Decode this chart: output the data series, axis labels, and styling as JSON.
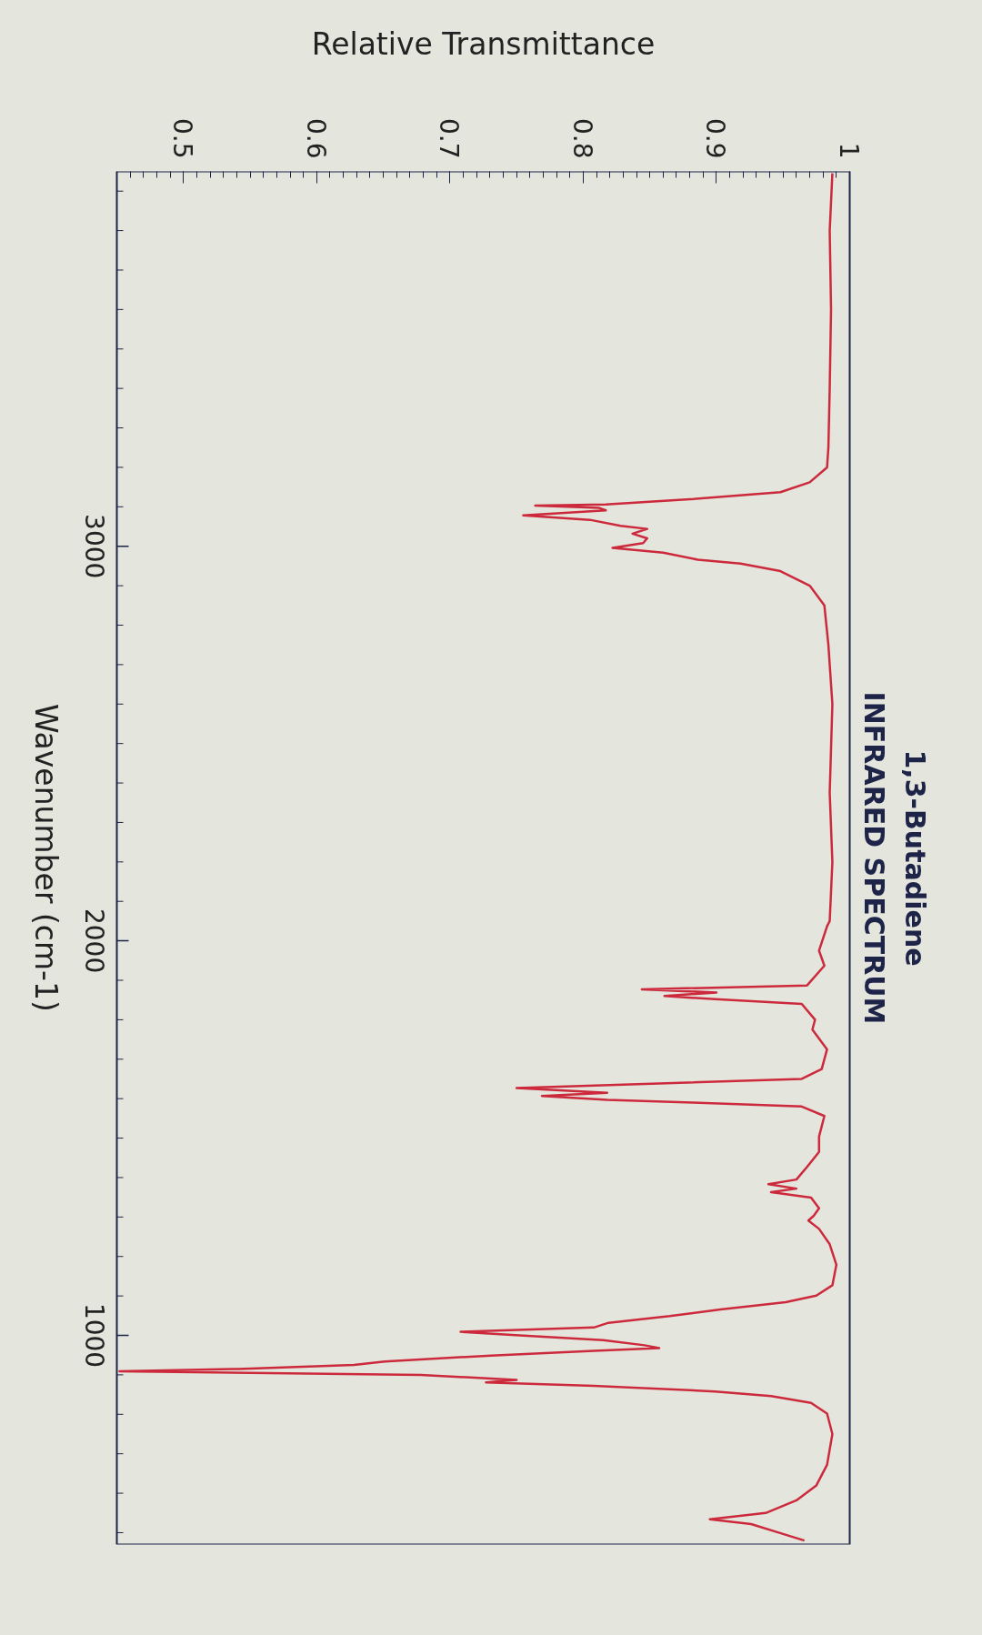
{
  "chart_data": {
    "type": "line",
    "title": "1,3-Butadiene",
    "subtitle": "INFRARED SPECTRUM",
    "xlabel": "Relative Transmittance",
    "ylabel": "Wavenumber (cm-1)",
    "xlim": [
      0.45,
      1
    ],
    "ylim": [
      470,
      3950
    ],
    "xticks": [
      0.5,
      0.6,
      0.7,
      0.8,
      0.9,
      1
    ],
    "yticks": [
      3000,
      2000,
      1000
    ],
    "series": [
      {
        "color": "#cc2a3c",
        "x": [
          0.987,
          0.985,
          0.986,
          0.985,
          0.984,
          0.983,
          0.97,
          0.948,
          0.88,
          0.817,
          0.764,
          0.812,
          0.817,
          0.755,
          0.805,
          0.828,
          0.848,
          0.837,
          0.848,
          0.845,
          0.822,
          0.86,
          0.886,
          0.918,
          0.948,
          0.97,
          0.981,
          0.984,
          0.987,
          0.985,
          0.987,
          0.985,
          0.983,
          0.977,
          0.981,
          0.968,
          0.844,
          0.9,
          0.861,
          0.899,
          0.964,
          0.974,
          0.972,
          0.983,
          0.979,
          0.964,
          0.75,
          0.818,
          0.769,
          0.818,
          0.882,
          0.964,
          0.981,
          0.977,
          0.977,
          0.968,
          0.96,
          0.939,
          0.96,
          0.941,
          0.971,
          0.977,
          0.973,
          0.969,
          0.977,
          0.985,
          0.99,
          0.987,
          0.975,
          0.952,
          0.903,
          0.865,
          0.819,
          0.808,
          0.708,
          0.758,
          0.815,
          0.846,
          0.857,
          0.808,
          0.731,
          0.651,
          0.628,
          0.541,
          0.452,
          0.678,
          0.75,
          0.727,
          0.808,
          0.899,
          0.941,
          0.971,
          0.983,
          0.987,
          0.983,
          0.975,
          0.96,
          0.937,
          0.895,
          0.926,
          0.945,
          0.966
        ],
        "values": [
          3945,
          3800,
          3600,
          3400,
          3250,
          3200,
          3162,
          3137,
          3119,
          3106,
          3103,
          3097,
          3091,
          3078,
          3067,
          3052,
          3044,
          3032,
          3020,
          3008,
          2996,
          2984,
          2966,
          2956,
          2937,
          2900,
          2850,
          2750,
          2600,
          2375,
          2200,
          2050,
          2037,
          1975,
          1937,
          1887,
          1877,
          1869,
          1860,
          1852,
          1840,
          1800,
          1775,
          1725,
          1675,
          1650,
          1627,
          1615,
          1607,
          1597,
          1590,
          1580,
          1556,
          1504,
          1465,
          1427,
          1395,
          1383,
          1372,
          1363,
          1349,
          1322,
          1303,
          1291,
          1270,
          1231,
          1179,
          1127,
          1101,
          1084,
          1066,
          1049,
          1032,
          1020,
          1009,
          999,
          988,
          975,
          968,
          961,
          949,
          934,
          925,
          915,
          909,
          900,
          887,
          881,
          872,
          858,
          846,
          829,
          802,
          750,
          672,
          620,
          582,
          550,
          534,
          522,
          502,
          480
        ]
      }
    ]
  }
}
